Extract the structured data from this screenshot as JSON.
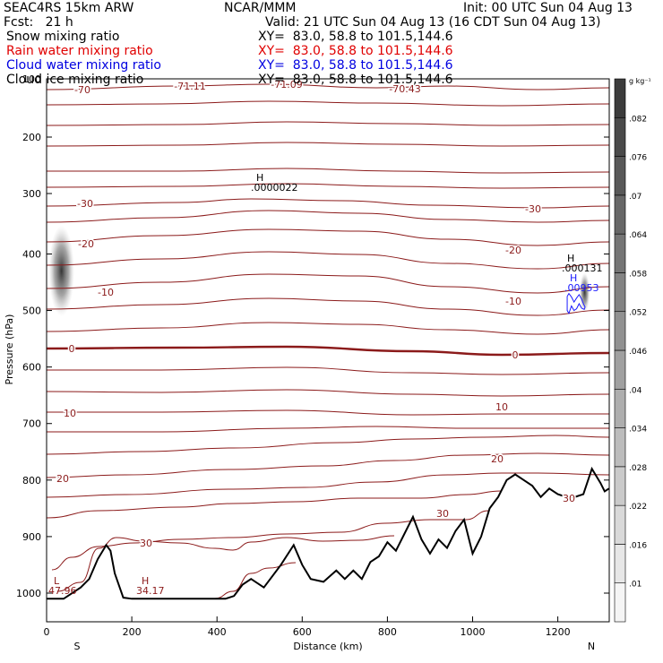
{
  "header": {
    "model": "SEAC4RS 15km ARW",
    "forecast": "Fcst:   21 h",
    "center": "NCAR/MMM",
    "init": "Init: 00 UTC Sun 04 Aug 13",
    "valid": "Valid: 21 UTC Sun 04 Aug 13 (16 CDT Sun 04 Aug 13)",
    "fields": [
      {
        "label": "Snow mixing ratio",
        "xy": "XY=  83.0, 58.8 to 101.5,144.6",
        "color": "#000000"
      },
      {
        "label": "Rain water mixing ratio",
        "xy": "XY=  83.0, 58.8 to 101.5,144.6",
        "color": "#e00000"
      },
      {
        "label": "Cloud water mixing ratio",
        "xy": "XY=  83.0, 58.8 to 101.5,144.6",
        "color": "#0000e0"
      },
      {
        "label": "Cloud ice mixing ratio",
        "xy": "XY=  83.0, 58.8 to 101.5,144.6",
        "color": "#000000"
      }
    ]
  },
  "colors": {
    "isotherm": "#8b1a1a",
    "terrain": "#000000",
    "cloud_water": "#1a1aff"
  },
  "chart_data": {
    "type": "cross-section",
    "xlabel": "Distance (km)",
    "ylabel": "Pressure (hPa)",
    "xlim": [
      0,
      1320
    ],
    "ylim": [
      1050,
      100
    ],
    "x_ticks": [
      0,
      200,
      400,
      600,
      800,
      1000,
      1200
    ],
    "y_ticks": [
      200,
      300,
      400,
      500,
      600,
      700,
      800,
      900,
      1000
    ],
    "y_top_label": "100",
    "x_end_labels": {
      "left": "S",
      "right": "N"
    },
    "colorbar": {
      "unit": "g kg⁻¹",
      "ticks": [
        ".01",
        ".016",
        ".022",
        ".028",
        ".034",
        ".04",
        ".046",
        ".052",
        ".058",
        ".064",
        ".07",
        ".076",
        ".082"
      ]
    },
    "isotherm_levels": [
      -70,
      -60,
      -50,
      -40,
      -30,
      -20,
      -10,
      0,
      10,
      20,
      30
    ],
    "isotherm_labels": [
      "-70",
      "-71.11",
      "-71.09",
      "-70.43",
      "-30",
      "-30",
      "-20",
      "-20",
      "-10",
      "-10",
      "0",
      "0",
      "10",
      "10",
      "20",
      "20",
      "30",
      "30",
      "30"
    ],
    "extrema": [
      {
        "type": "H",
        "value": ".0000022",
        "x": 490,
        "p": 290
      },
      {
        "type": "H",
        "value": ".000131",
        "x": 1255,
        "p": 452
      },
      {
        "type": "H",
        "value": ".00953",
        "x": 1260,
        "p": 478
      },
      {
        "type": "L",
        "value": "47.96",
        "x": 15,
        "p": 1000
      },
      {
        "type": "H",
        "value": "34.17",
        "x": 230,
        "p": 1000
      }
    ],
    "terrain": {
      "x": [
        0,
        40,
        80,
        100,
        120,
        140,
        150,
        160,
        180,
        200,
        230,
        260,
        300,
        340,
        380,
        420,
        440,
        460,
        480,
        510,
        550,
        580,
        600,
        620,
        650,
        680,
        700,
        720,
        740,
        760,
        780,
        800,
        820,
        840,
        860,
        880,
        900,
        920,
        940,
        960,
        980,
        1000,
        1020,
        1040,
        1060,
        1080,
        1100,
        1120,
        1140,
        1160,
        1180,
        1200,
        1220,
        1240,
        1260,
        1280,
        1300,
        1310,
        1320
      ],
      "p": [
        1010,
        1010,
        990,
        975,
        940,
        915,
        925,
        965,
        1008,
        1010,
        1010,
        1010,
        1010,
        1010,
        1010,
        1010,
        1005,
        985,
        975,
        990,
        950,
        915,
        950,
        975,
        980,
        960,
        975,
        960,
        975,
        945,
        935,
        910,
        925,
        895,
        865,
        905,
        930,
        905,
        920,
        890,
        870,
        930,
        900,
        850,
        830,
        800,
        790,
        800,
        810,
        830,
        815,
        825,
        830,
        830,
        825,
        780,
        805,
        820,
        815
      ]
    },
    "cloud_water_contour": {
      "x": [
        1222,
        1226,
        1232,
        1238,
        1244,
        1250,
        1256,
        1260,
        1264,
        1262,
        1256,
        1250,
        1244,
        1238,
        1232,
        1226,
        1222,
        1222
      ],
      "p": [
        475,
        470,
        476,
        485,
        478,
        472,
        480,
        488,
        494,
        498,
        496,
        488,
        497,
        500,
        492,
        505,
        500,
        475
      ]
    },
    "grey_shading": [
      {
        "x": 35,
        "p": 430,
        "half_width_km": 30,
        "half_height_hPa": 80
      },
      {
        "x": 1263,
        "p": 468,
        "half_width_km": 12,
        "half_height_hPa": 35
      }
    ]
  }
}
